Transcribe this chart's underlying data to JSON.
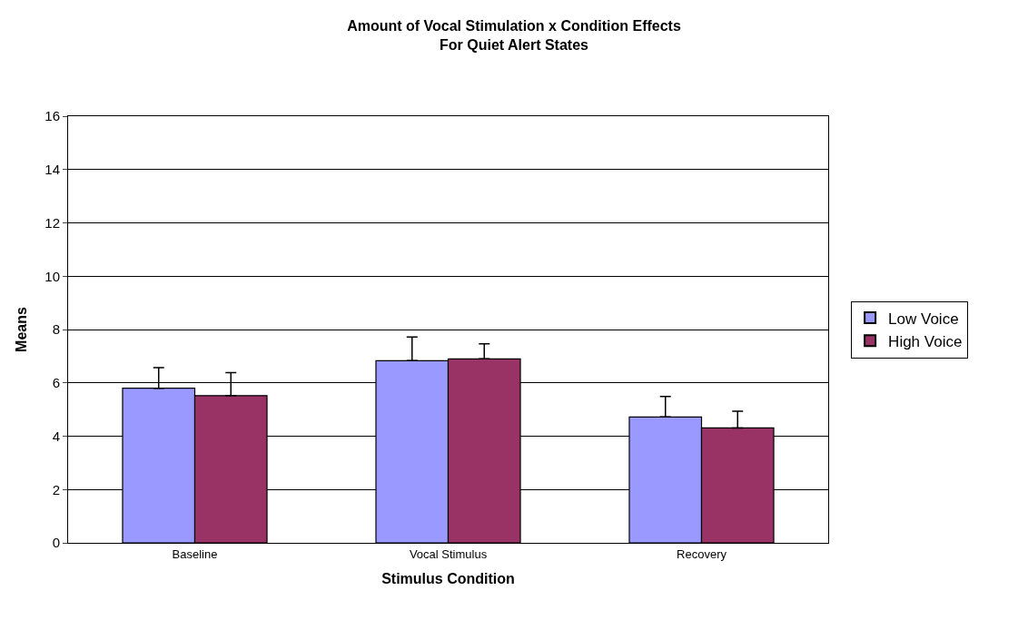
{
  "chart_data": {
    "type": "bar",
    "title": "Amount of Vocal Stimulation x Condition Effects\nFor Quiet Alert States",
    "xlabel": "Stimulus Condition",
    "ylabel": "Means",
    "categories": [
      "Baseline",
      "Vocal Stimulus",
      "Recovery"
    ],
    "series": [
      {
        "name": "Low Voice",
        "color": "#9999ff",
        "values": [
          5.8,
          6.83,
          4.72
        ],
        "errors": [
          [
            5.8,
            6.57
          ],
          [
            6.83,
            7.72
          ],
          [
            4.72,
            5.49
          ]
        ]
      },
      {
        "name": "High Voice",
        "color": "#993366",
        "values": [
          5.52,
          6.9,
          4.31
        ],
        "errors": [
          [
            5.52,
            6.38
          ],
          [
            6.9,
            7.46
          ],
          [
            4.31,
            4.94
          ]
        ]
      }
    ],
    "ylim": [
      0,
      16
    ],
    "yticks": [
      0,
      2,
      4,
      6,
      8,
      10,
      12,
      14,
      16
    ],
    "grid": "y",
    "legend": "right"
  }
}
